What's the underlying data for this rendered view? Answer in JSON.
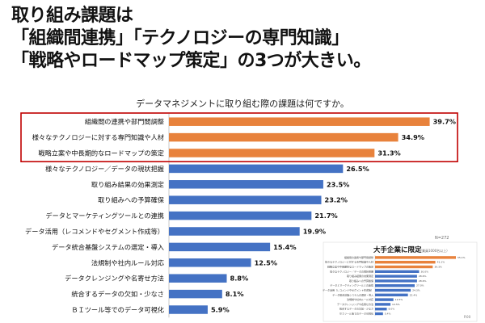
{
  "slide": {
    "title_lines": [
      "取り組み課題は",
      "「組織間連携」「テクノロジーの専門知識」",
      "「戦略やロードマップ策定」の3つが大きい。"
    ]
  },
  "chart_data": {
    "type": "bar",
    "orientation": "horizontal",
    "title": "データマネジメントに取り組む際の課題は何ですか。",
    "sample_note": "N=272",
    "highlighted_count": 3,
    "categories": [
      "組織間の連携や部門間調整",
      "様々なテクノロジーに対する専門知識や人材",
      "戦略立案や中長期的なロードマップの策定",
      "様々なテクノロジー／データの現状把握",
      "取り組み結果の効果測定",
      "取り組みへの予算確保",
      "データとマーケティングツールとの連携",
      "データ活用（レコメンドやセグメント作成等）",
      "データ統合基盤システムの選定・導入",
      "法規制や社内ルール対応",
      "データクレンジングや名寄せ方法",
      "統合するデータの欠如・少なさ",
      "ＢＩツール等でのデータ可視化"
    ],
    "values": [
      39.7,
      34.9,
      31.3,
      26.5,
      23.5,
      23.2,
      21.7,
      19.9,
      15.4,
      12.5,
      8.8,
      8.1,
      5.9
    ],
    "value_labels": [
      "39.7%",
      "34.9%",
      "31.3%",
      "26.5%",
      "23.5%",
      "23.2%",
      "21.7%",
      "19.9%",
      "15.4%",
      "12.5%",
      "8.8%",
      "8.1%",
      "5.9%"
    ],
    "xlim": [
      0,
      40
    ],
    "colors": {
      "highlight": "#E8823C",
      "normal": "#4472C4",
      "frame": "#C00000"
    }
  },
  "inset": {
    "title": "大手企業に限定",
    "subtitle": "（従業員1000名以上）",
    "values": [
      55.1,
      41.1,
      39.3,
      30.0,
      28.6,
      28.6,
      27.0,
      24.3,
      22.4,
      12.5,
      10.5,
      8.0,
      5.4
    ],
    "colors": {
      "highlight": "#E8823C",
      "normal": "#4472C4"
    },
    "page_number": "P.00"
  }
}
